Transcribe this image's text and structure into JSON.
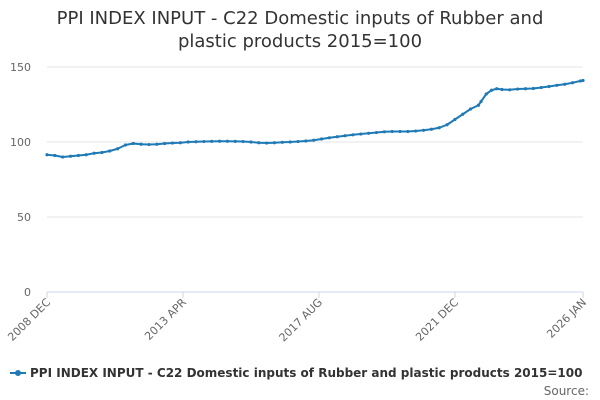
{
  "chart_data": {
    "type": "line",
    "title_lines": [
      "PPI INDEX INPUT - C22 Domestic inputs of Rubber and",
      "plastic products 2015=100"
    ],
    "xlabel": "",
    "ylabel": "",
    "ylim": [
      0,
      150
    ],
    "y_ticks": [
      "0",
      "50",
      "100",
      "150"
    ],
    "x_range": [
      "2008-12",
      "2026-01"
    ],
    "x_tick_labels": [
      "2008 DEC",
      "2013 APR",
      "2017 AUG",
      "2021 DEC",
      "2026 JAN"
    ],
    "x_tick_dates": [
      "2008-12",
      "2013-04",
      "2017-08",
      "2021-12",
      "2026-01"
    ],
    "grid": true,
    "legend_position": "bottom",
    "series": [
      {
        "name": "PPI INDEX INPUT - C22 Domestic inputs of Rubber and plastic products 2015=100",
        "color": "#1f7ab6",
        "points": [
          [
            "2008-12",
            91.5
          ],
          [
            "2009-03",
            91.0
          ],
          [
            "2009-06",
            90.0
          ],
          [
            "2009-09",
            90.5
          ],
          [
            "2009-12",
            91.0
          ],
          [
            "2010-03",
            91.5
          ],
          [
            "2010-06",
            92.5
          ],
          [
            "2010-09",
            93.0
          ],
          [
            "2010-12",
            94.0
          ],
          [
            "2011-03",
            95.5
          ],
          [
            "2011-06",
            98.0
          ],
          [
            "2011-09",
            99.0
          ],
          [
            "2011-12",
            98.5
          ],
          [
            "2012-03",
            98.3
          ],
          [
            "2012-06",
            98.5
          ],
          [
            "2012-09",
            99.0
          ],
          [
            "2012-12",
            99.3
          ],
          [
            "2013-03",
            99.5
          ],
          [
            "2013-06",
            100.0
          ],
          [
            "2013-09",
            100.2
          ],
          [
            "2013-12",
            100.3
          ],
          [
            "2014-03",
            100.4
          ],
          [
            "2014-06",
            100.5
          ],
          [
            "2014-09",
            100.5
          ],
          [
            "2014-12",
            100.4
          ],
          [
            "2015-03",
            100.3
          ],
          [
            "2015-06",
            100.0
          ],
          [
            "2015-09",
            99.5
          ],
          [
            "2015-12",
            99.3
          ],
          [
            "2016-03",
            99.5
          ],
          [
            "2016-06",
            99.8
          ],
          [
            "2016-09",
            100.0
          ],
          [
            "2016-12",
            100.3
          ],
          [
            "2017-03",
            100.7
          ],
          [
            "2017-06",
            101.2
          ],
          [
            "2017-09",
            102.0
          ],
          [
            "2017-12",
            102.8
          ],
          [
            "2018-03",
            103.5
          ],
          [
            "2018-06",
            104.2
          ],
          [
            "2018-09",
            104.8
          ],
          [
            "2018-12",
            105.3
          ],
          [
            "2019-03",
            105.8
          ],
          [
            "2019-06",
            106.3
          ],
          [
            "2019-09",
            106.8
          ],
          [
            "2019-12",
            107.0
          ],
          [
            "2020-03",
            107.0
          ],
          [
            "2020-06",
            107.0
          ],
          [
            "2020-09",
            107.3
          ],
          [
            "2020-12",
            107.8
          ],
          [
            "2021-03",
            108.5
          ],
          [
            "2021-06",
            109.5
          ],
          [
            "2021-09",
            111.5
          ],
          [
            "2021-12",
            115.0
          ],
          [
            "2022-03",
            118.5
          ],
          [
            "2022-06",
            122.0
          ],
          [
            "2022-09",
            124.5
          ],
          [
            "2022-10",
            127.0
          ],
          [
            "2022-12",
            132.0
          ],
          [
            "2023-02",
            134.5
          ],
          [
            "2023-04",
            135.5
          ],
          [
            "2023-06",
            135.0
          ],
          [
            "2023-09",
            134.8
          ],
          [
            "2023-12",
            135.3
          ],
          [
            "2024-03",
            135.5
          ],
          [
            "2024-06",
            135.7
          ],
          [
            "2024-09",
            136.3
          ],
          [
            "2024-12",
            137.0
          ],
          [
            "2025-03",
            137.8
          ],
          [
            "2025-06",
            138.5
          ],
          [
            "2025-09",
            139.5
          ],
          [
            "2025-12",
            140.7
          ],
          [
            "2026-01",
            141.0
          ]
        ]
      }
    ]
  },
  "footer": {
    "source_label": "Source:"
  }
}
